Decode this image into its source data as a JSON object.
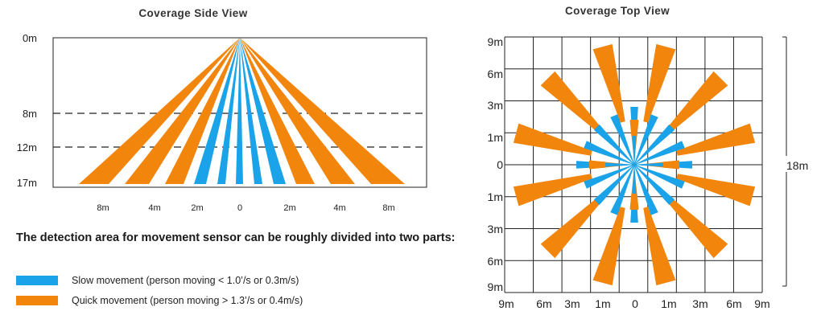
{
  "side_view": {
    "title": "Coverage Side View",
    "y_labels": [
      "0m",
      "8m",
      "12m",
      "17m"
    ],
    "x_labels": [
      "8m",
      "4m",
      "2m",
      "0",
      "2m",
      "4m",
      "8m"
    ]
  },
  "top_view": {
    "title": "Coverage Top View",
    "y_labels": [
      "9m",
      "6m",
      "3m",
      "1m",
      "0",
      "1m",
      "3m",
      "6m",
      "9m"
    ],
    "x_labels": [
      "9m",
      "6m",
      "3m",
      "1m",
      "0",
      "1m",
      "3m",
      "6m",
      "9m"
    ],
    "span_label": "18m"
  },
  "description": "The detection area for movement sensor can be roughly divided into two parts:",
  "legend": [
    {
      "label": "Slow movement (person moving < 1.0’/s or 0.3m/s)",
      "color": "#1aa3e8"
    },
    {
      "label": "Quick movement (person moving > 1.3’/s or 0.4m/s)",
      "color": "#f2850c"
    }
  ],
  "colors": {
    "slow": "#1aa3e8",
    "quick": "#f2850c",
    "line": "#222222"
  }
}
